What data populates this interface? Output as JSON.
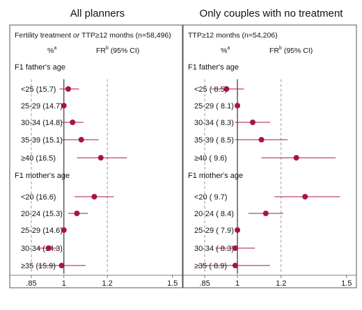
{
  "chart_data": [
    {
      "type": "forest",
      "title": "All planners",
      "subtitle_parts": [
        {
          "text": "Fertility treatment ",
          "italic": false
        },
        {
          "text": "or",
          "italic": true
        },
        {
          "text": " TTP≥12 months (n=58,496)",
          "italic": false
        }
      ],
      "col_pct": "%",
      "col_pct_sup": "a",
      "col_fr": "FR",
      "col_fr_sup": "b",
      "col_fr_rest": " (95% CI)",
      "xlim": [
        0.77,
        1.52
      ],
      "xticks": [
        0.85,
        1,
        1.2,
        1.5
      ],
      "xtick_labels": [
        ".85",
        "1",
        "1.2",
        "1.5"
      ],
      "ref_line": 1,
      "dashed_lines": [
        0.85,
        1.2
      ],
      "sections": [
        {
          "label": "F1 father's age",
          "rows": [
            {
              "label": "<25",
              "pct": "(15.7)",
              "fr": 1.02,
              "lo": 0.98,
              "hi": 1.07
            },
            {
              "label": "25-29",
              "pct": "(14.7)",
              "fr": 1.0,
              "lo": 1.0,
              "hi": 1.0
            },
            {
              "label": "30-34",
              "pct": "(14.8)",
              "fr": 1.04,
              "lo": 0.99,
              "hi": 1.09
            },
            {
              "label": "35-39",
              "pct": "(15.1)",
              "fr": 1.08,
              "lo": 0.99,
              "hi": 1.16
            },
            {
              "label": "≥40",
              "pct": "(16.5)",
              "fr": 1.17,
              "lo": 1.06,
              "hi": 1.29
            }
          ]
        },
        {
          "label": "F1 mother's age",
          "rows": [
            {
              "label": "<20",
              "pct": "(16.6)",
              "fr": 1.14,
              "lo": 1.05,
              "hi": 1.23
            },
            {
              "label": "20-24",
              "pct": "(15.3)",
              "fr": 1.06,
              "lo": 1.02,
              "hi": 1.11
            },
            {
              "label": "25-29",
              "pct": "(14.6)",
              "fr": 1.0,
              "lo": 1.0,
              "hi": 1.0
            },
            {
              "label": "30-34",
              "pct": "(14.3)",
              "fr": 0.93,
              "lo": 0.88,
              "hi": 0.98
            },
            {
              "label": "≥35",
              "pct": "(15.9)",
              "fr": 0.99,
              "lo": 0.88,
              "hi": 1.1
            }
          ]
        }
      ]
    },
    {
      "type": "forest",
      "title": "Only couples with no treatment",
      "subtitle_parts": [
        {
          "text": "TTP≥12 months (n=54,206)",
          "italic": false
        }
      ],
      "col_pct": "%",
      "col_pct_sup": "a",
      "col_fr": "FR",
      "col_fr_sup": "b",
      "col_fr_rest": " (95% CI)",
      "xlim": [
        0.77,
        1.52
      ],
      "xticks": [
        0.85,
        1,
        1.2,
        1.5
      ],
      "xtick_labels": [
        ".85",
        "1",
        "1.2",
        "1.5"
      ],
      "ref_line": 1,
      "dashed_lines": [
        0.85,
        1.2
      ],
      "sections": [
        {
          "label": "F1 father's age",
          "rows": [
            {
              "label": "<25",
              "pct": "( 8.5)",
              "fr": 0.95,
              "lo": 0.88,
              "hi": 1.03
            },
            {
              "label": "25-29",
              "pct": "( 8.1)",
              "fr": 1.0,
              "lo": 1.0,
              "hi": 1.0
            },
            {
              "label": "30-34",
              "pct": "( 8.3)",
              "fr": 1.07,
              "lo": 0.99,
              "hi": 1.15
            },
            {
              "label": "35-39",
              "pct": "( 8.5)",
              "fr": 1.11,
              "lo": 0.99,
              "hi": 1.23
            },
            {
              "label": "≥40",
              "pct": "( 9.6)",
              "fr": 1.27,
              "lo": 1.11,
              "hi": 1.45
            }
          ]
        },
        {
          "label": "F1 mother's age",
          "rows": [
            {
              "label": "<20",
              "pct": "( 9.7)",
              "fr": 1.31,
              "lo": 1.17,
              "hi": 1.47
            },
            {
              "label": "20-24",
              "pct": "( 8.4)",
              "fr": 1.13,
              "lo": 1.05,
              "hi": 1.21
            },
            {
              "label": "25-29",
              "pct": "( 7.9)",
              "fr": 1.0,
              "lo": 1.0,
              "hi": 1.0
            },
            {
              "label": "30-34",
              "pct": "( 8.3)",
              "fr": 0.99,
              "lo": 0.9,
              "hi": 1.08
            },
            {
              "label": "≥35",
              "pct": "( 8.9)",
              "fr": 0.99,
              "lo": 0.82,
              "hi": 1.15
            }
          ]
        }
      ]
    }
  ],
  "colors": {
    "marker": "#a8153f",
    "ci_line": "#a8153f",
    "ref_line": "#333333",
    "dashed": "#9a9a9a",
    "frame": "#555555"
  }
}
